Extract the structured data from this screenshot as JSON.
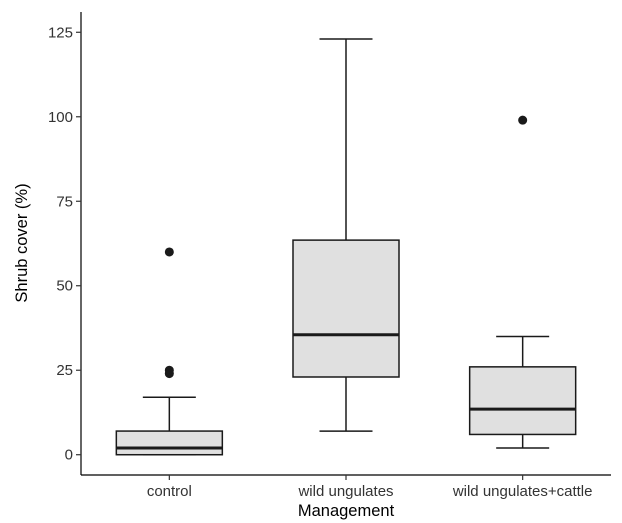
{
  "chart_data": {
    "type": "boxplot",
    "xlabel": "Management",
    "ylabel": "Shrub cover (%)",
    "ylim": [
      -6,
      131
    ],
    "yticks": [
      0,
      25,
      50,
      75,
      100,
      125
    ],
    "ytick_labels": [
      "0",
      "25",
      "50",
      "75",
      "100",
      "125"
    ],
    "categories": [
      "control",
      "wild ungulates",
      "wild ungulates+cattle"
    ],
    "grid": false,
    "legend": "none",
    "box_fill": "#e0e0e0",
    "stroke_color": "#1a1a1a",
    "boxes": [
      {
        "category": "control",
        "whisker_low": 0,
        "q1": 0,
        "median": 2,
        "q3": 7,
        "whisker_high": 17,
        "outliers": [
          24,
          25,
          60
        ]
      },
      {
        "category": "wild ungulates",
        "whisker_low": 7,
        "q1": 23,
        "median": 35.5,
        "q3": 63.5,
        "whisker_high": 123,
        "outliers": []
      },
      {
        "category": "wild ungulates+cattle",
        "whisker_low": 2,
        "q1": 6,
        "median": 13.5,
        "q3": 26,
        "whisker_high": 35,
        "outliers": [
          99
        ]
      }
    ]
  }
}
